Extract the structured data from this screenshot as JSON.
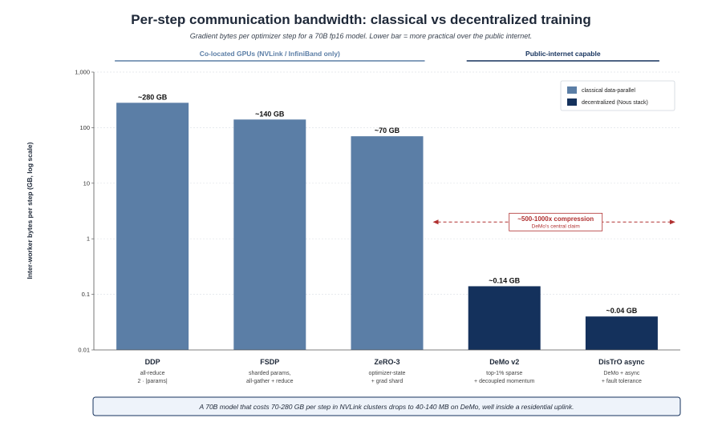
{
  "chart_data": {
    "type": "bar",
    "title": "Per-step communication bandwidth: classical vs decentralized training",
    "subtitle": "Gradient bytes per optimizer step for a 70B fp16 model. Lower bar = more practical over the public internet.",
    "ylabel": "Inter-worker bytes per step (GB, log scale)",
    "yscale": "log",
    "ylim": [
      0.01,
      1000
    ],
    "yticks": [
      0.01,
      0.1,
      1,
      10,
      100,
      1000
    ],
    "ytick_labels": [
      "0.01",
      "0.1",
      "1",
      "10",
      "100",
      "1,000"
    ],
    "grid": true,
    "legend_position": "top-right",
    "colors": {
      "classical": "#5b7ea6",
      "decentralized": "#14315c",
      "annotation": "#b03030"
    },
    "groups": [
      {
        "label": "Co-located GPUs (NVLink / InfiniBand only)",
        "color": "#5b7ea6",
        "from": 0,
        "to": 2
      },
      {
        "label": "Public-internet capable",
        "color": "#14315c",
        "from": 3,
        "to": 4
      }
    ],
    "series": [
      {
        "name": "classical data-parallel",
        "color": "#5b7ea6"
      },
      {
        "name": "decentralized (Nous stack)",
        "color": "#14315c"
      }
    ],
    "bars": [
      {
        "category": "DDP",
        "value": 280,
        "label": "~280 GB",
        "series": 0,
        "sub": [
          "all-reduce",
          "2 · |params|"
        ]
      },
      {
        "category": "FSDP",
        "value": 140,
        "label": "~140 GB",
        "series": 0,
        "sub": [
          "sharded params,",
          "all-gather + reduce"
        ]
      },
      {
        "category": "ZeRO-3",
        "value": 70,
        "label": "~70 GB",
        "series": 0,
        "sub": [
          "optimizer-state",
          "+ grad shard"
        ]
      },
      {
        "category": "DeMo v2",
        "value": 0.14,
        "label": "~0.14 GB",
        "series": 1,
        "sub": [
          "top-1% sparse",
          "+ decoupled momentum"
        ]
      },
      {
        "category": "DisTrO async",
        "value": 0.04,
        "label": "~0.04 GB",
        "series": 1,
        "sub": [
          "DeMo + async",
          "+ fault tolerance"
        ]
      }
    ],
    "annotation": {
      "title": "~500-1000x compression",
      "subtitle": "DeMo's central claim",
      "arrow_value": 2
    },
    "footnote": "A 70B model that costs 70-280 GB per step in NVLink clusters drops to 40-140 MB on DeMo, well inside a residential uplink."
  }
}
